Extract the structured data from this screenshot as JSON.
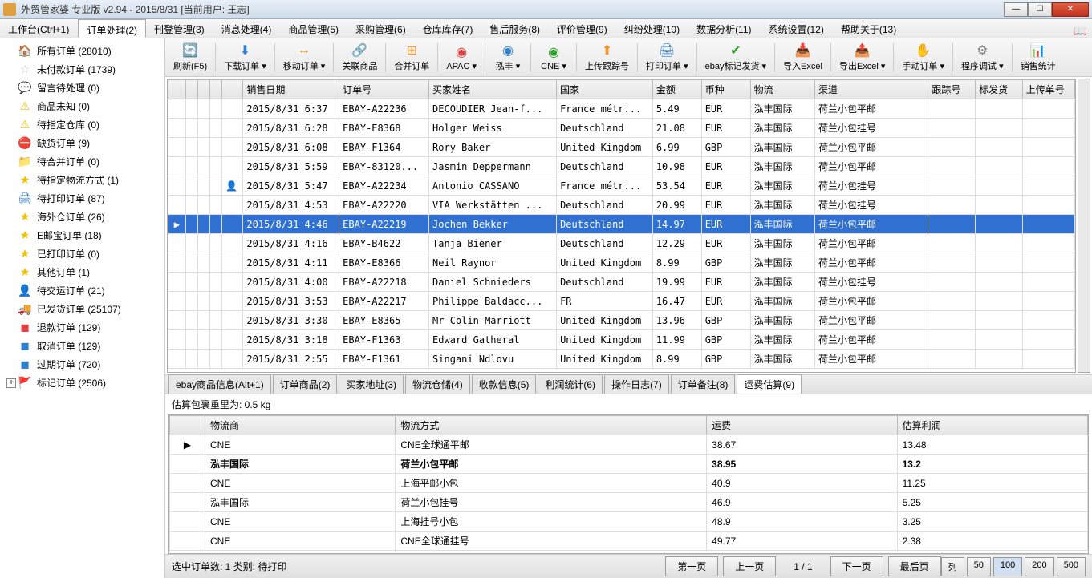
{
  "title": "外贸管家婆 专业版 v2.94 - 2015/8/31 [当前用户: 王志]",
  "menus": [
    {
      "label": "工作台(Ctrl+1)"
    },
    {
      "label": "订单处理(2)",
      "active": true
    },
    {
      "label": "刊登管理(3)"
    },
    {
      "label": "消息处理(4)"
    },
    {
      "label": "商品管理(5)"
    },
    {
      "label": "采购管理(6)"
    },
    {
      "label": "仓库库存(7)"
    },
    {
      "label": "售后服务(8)"
    },
    {
      "label": "评价管理(9)"
    },
    {
      "label": "纠纷处理(10)"
    },
    {
      "label": "数据分析(11)"
    },
    {
      "label": "系统设置(12)"
    },
    {
      "label": "帮助关于(13)"
    }
  ],
  "sidebar": [
    {
      "icon": "🏠",
      "color": "#ff8000",
      "label": "所有订单 (28010)"
    },
    {
      "icon": "☆",
      "color": "#c0c0c0",
      "label": "未付款订单 (1739)"
    },
    {
      "icon": "💬",
      "color": "#2090e0",
      "label": "留言待处理 (0)"
    },
    {
      "icon": "⚠",
      "color": "#f0c000",
      "label": "商品未知 (0)"
    },
    {
      "icon": "⚠",
      "color": "#f0c000",
      "label": "待指定仓库 (0)"
    },
    {
      "icon": "⛔",
      "color": "#e04020",
      "label": "缺货订单 (9)"
    },
    {
      "icon": "📁",
      "color": "#f09020",
      "label": "待合并订单 (0)"
    },
    {
      "icon": "★",
      "color": "#f0c000",
      "label": "待指定物流方式 (1)"
    },
    {
      "icon": "🖨",
      "color": "#3080d0",
      "label": "待打印订单 (87)"
    },
    {
      "icon": "★",
      "color": "#f0c000",
      "label": "海外仓订单 (26)"
    },
    {
      "icon": "★",
      "color": "#f0c000",
      "label": "E邮宝订单 (18)"
    },
    {
      "icon": "★",
      "color": "#f0c000",
      "label": "已打印订单 (0)"
    },
    {
      "icon": "★",
      "color": "#f0c000",
      "label": "其他订单 (1)"
    },
    {
      "icon": "👤",
      "color": "#30a030",
      "label": "待交运订单 (21)"
    },
    {
      "icon": "🚚",
      "color": "#3080d0",
      "label": "已发货订单 (25107)"
    },
    {
      "icon": "◼",
      "color": "#e04040",
      "label": "退款订单 (129)"
    },
    {
      "icon": "◼",
      "color": "#3080d0",
      "label": "取消订单 (129)"
    },
    {
      "icon": "◼",
      "color": "#3080d0",
      "label": "过期订单 (720)"
    },
    {
      "icon": "🚩",
      "color": "#e02020",
      "label": "标记订单 (2506)",
      "expand": true
    }
  ],
  "toolbar": [
    {
      "icon": "🔄",
      "label": "刷新(F5)",
      "color": "#30a030"
    },
    {
      "icon": "⬇",
      "label": "下载订单",
      "color": "#3080d0",
      "dd": true
    },
    {
      "icon": "↔",
      "label": "移动订单",
      "color": "#f09020",
      "dd": true
    },
    {
      "icon": "🔗",
      "label": "关联商品",
      "color": "#3080d0"
    },
    {
      "icon": "⊞",
      "label": "合并订单",
      "color": "#f09020"
    },
    {
      "icon": "◉",
      "label": "APAC",
      "color": "#e04040",
      "dd": true
    },
    {
      "icon": "◉",
      "label": "泓丰",
      "color": "#3080d0",
      "dd": true
    },
    {
      "icon": "◉",
      "label": "CNE",
      "color": "#30a030",
      "dd": true
    },
    {
      "icon": "⬆",
      "label": "上传跟踪号",
      "color": "#f09020"
    },
    {
      "icon": "🖨",
      "label": "打印订单",
      "color": "#3080d0",
      "dd": true
    },
    {
      "icon": "✔",
      "label": "ebay标记发货",
      "color": "#30a030",
      "dd": true
    },
    {
      "icon": "📥",
      "label": "导入Excel",
      "color": "#30a030"
    },
    {
      "icon": "📤",
      "label": "导出Excel",
      "color": "#30a030",
      "dd": true
    },
    {
      "icon": "✋",
      "label": "手动订单",
      "color": "#f09020",
      "dd": true
    },
    {
      "icon": "⚙",
      "label": "程序调试",
      "color": "#808080",
      "dd": true
    },
    {
      "icon": "📊",
      "label": "销售统计",
      "color": "#3080d0"
    }
  ],
  "grid": {
    "columns": [
      "",
      "",
      "",
      "",
      "",
      "销售日期",
      "订单号",
      "买家姓名",
      "国家",
      "金额",
      "币种",
      "物流",
      "渠道",
      "跟踪号",
      "标发货",
      "上传单号"
    ],
    "widths": [
      20,
      14,
      14,
      14,
      14,
      96,
      86,
      116,
      90,
      56,
      56,
      74,
      130,
      54,
      54,
      60
    ],
    "rows": [
      {
        "c": [
          "",
          "",
          "",
          "",
          "",
          "2015/8/31 6:37",
          "EBAY-A22236",
          "DECOUDIER Jean-f...",
          "France métr...",
          "5.49",
          "EUR",
          "泓丰国际",
          "荷兰小包平邮",
          "",
          "",
          ""
        ]
      },
      {
        "c": [
          "",
          "",
          "",
          "",
          "",
          "2015/8/31 6:28",
          "EBAY-E8368",
          "Holger Weiss",
          "Deutschland",
          "21.08",
          "EUR",
          "泓丰国际",
          "荷兰小包挂号",
          "",
          "",
          ""
        ]
      },
      {
        "c": [
          "",
          "",
          "",
          "",
          "",
          "2015/8/31 6:08",
          "EBAY-F1364",
          "Rory Baker",
          "United Kingdom",
          "6.99",
          "GBP",
          "泓丰国际",
          "荷兰小包平邮",
          "",
          "",
          ""
        ]
      },
      {
        "c": [
          "",
          "",
          "",
          "",
          "",
          "2015/8/31 5:59",
          "EBAY-83120...",
          "Jasmin Deppermann",
          "Deutschland",
          "10.98",
          "EUR",
          "泓丰国际",
          "荷兰小包平邮",
          "",
          "",
          ""
        ]
      },
      {
        "c": [
          "",
          "",
          "",
          "",
          "👤",
          "2015/8/31 5:47",
          "EBAY-A22234",
          "Antonio CASSANO",
          "France métr...",
          "53.54",
          "EUR",
          "泓丰国际",
          "荷兰小包挂号",
          "",
          "",
          ""
        ]
      },
      {
        "c": [
          "",
          "",
          "",
          "",
          "",
          "2015/8/31 4:53",
          "EBAY-A22220",
          "VIA Werkstätten ...",
          "Deutschland",
          "20.99",
          "EUR",
          "泓丰国际",
          "荷兰小包挂号",
          "",
          "",
          ""
        ]
      },
      {
        "c": [
          "▶",
          "",
          "",
          "",
          "",
          "2015/8/31 4:46",
          "EBAY-A22219",
          "Jochen Bekker",
          "Deutschland",
          "14.97",
          "EUR",
          "泓丰国际",
          "荷兰小包平邮",
          "",
          "",
          ""
        ],
        "selected": true
      },
      {
        "c": [
          "",
          "",
          "",
          "",
          "",
          "2015/8/31 4:16",
          "EBAY-B4622",
          "Tanja Biener",
          "Deutschland",
          "12.29",
          "EUR",
          "泓丰国际",
          "荷兰小包平邮",
          "",
          "",
          ""
        ]
      },
      {
        "c": [
          "",
          "",
          "",
          "",
          "",
          "2015/8/31 4:11",
          "EBAY-E8366",
          "Neil Raynor",
          "United Kingdom",
          "8.99",
          "GBP",
          "泓丰国际",
          "荷兰小包平邮",
          "",
          "",
          ""
        ]
      },
      {
        "c": [
          "",
          "",
          "",
          "",
          "",
          "2015/8/31 4:00",
          "EBAY-A22218",
          "Daniel Schnieders",
          "Deutschland",
          "19.99",
          "EUR",
          "泓丰国际",
          "荷兰小包挂号",
          "",
          "",
          ""
        ]
      },
      {
        "c": [
          "",
          "",
          "",
          "",
          "",
          "2015/8/31 3:53",
          "EBAY-A22217",
          "Philippe Baldacc...",
          "FR",
          "16.47",
          "EUR",
          "泓丰国际",
          "荷兰小包平邮",
          "",
          "",
          ""
        ]
      },
      {
        "c": [
          "",
          "",
          "",
          "",
          "",
          "2015/8/31 3:30",
          "EBAY-E8365",
          "Mr Colin Marriott",
          "United Kingdom",
          "13.96",
          "GBP",
          "泓丰国际",
          "荷兰小包平邮",
          "",
          "",
          ""
        ]
      },
      {
        "c": [
          "",
          "",
          "",
          "",
          "",
          "2015/8/31 3:18",
          "EBAY-F1363",
          "Edward Gatheral",
          "United Kingdom",
          "11.99",
          "GBP",
          "泓丰国际",
          "荷兰小包平邮",
          "",
          "",
          ""
        ]
      },
      {
        "c": [
          "",
          "",
          "",
          "",
          "",
          "2015/8/31 2:55",
          "EBAY-F1361",
          "Singani Ndlovu",
          "United Kingdom",
          "8.99",
          "GBP",
          "泓丰国际",
          "荷兰小包平邮",
          "",
          "",
          ""
        ]
      }
    ]
  },
  "bottom_tabs": [
    {
      "label": "ebay商品信息(Alt+1)"
    },
    {
      "label": "订单商品(2)"
    },
    {
      "label": "买家地址(3)"
    },
    {
      "label": "物流仓储(4)"
    },
    {
      "label": "收款信息(5)"
    },
    {
      "label": "利润统计(6)"
    },
    {
      "label": "操作日志(7)"
    },
    {
      "label": "订单备注(8)"
    },
    {
      "label": "运费估算(9)",
      "active": true
    }
  ],
  "est_label": "估算包裹重里为: 0.5 kg",
  "est": {
    "columns": [
      "",
      "物流商",
      "物流方式",
      "运费",
      "估算利润"
    ],
    "widths": [
      22,
      120,
      196,
      120,
      120
    ],
    "rows": [
      {
        "c": [
          "▶",
          "CNE",
          "CNE全球通平邮",
          "38.67",
          "13.48"
        ]
      },
      {
        "c": [
          "",
          "泓丰国际",
          "荷兰小包平邮",
          "38.95",
          "13.2"
        ],
        "bold": true
      },
      {
        "c": [
          "",
          "CNE",
          "上海平邮小包",
          "40.9",
          "11.25"
        ]
      },
      {
        "c": [
          "",
          "泓丰国际",
          "荷兰小包挂号",
          "46.9",
          "5.25"
        ]
      },
      {
        "c": [
          "",
          "CNE",
          "上海挂号小包",
          "48.9",
          "3.25"
        ]
      },
      {
        "c": [
          "",
          "CNE",
          "CNE全球通挂号",
          "49.77",
          "2.38"
        ]
      }
    ]
  },
  "footer": {
    "status": "选中订单数: 1 类别: 待打印",
    "nav": [
      "第一页",
      "上一页",
      "下一页",
      "最后页"
    ],
    "page": "1 / 1",
    "sizes": [
      "列",
      "50",
      "100",
      "200",
      "500"
    ],
    "active_size": "100"
  }
}
